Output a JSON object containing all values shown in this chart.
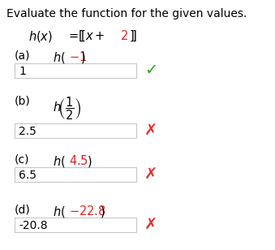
{
  "title": "Evaluate the function for the given values.",
  "bg": "#ffffff",
  "title_fs": 10,
  "func_fs": 10,
  "part_fs": 10,
  "answer_fs": 10,
  "mark_fs": 12,
  "box_color": "#c8c8c8",
  "check_color": "#22aa22",
  "cross_color": "#e03030",
  "text_color": "#000000",
  "red_color": "#dd2222",
  "parts": [
    {
      "letter": "(a)",
      "h_normal": "h(",
      "arg": "-1",
      "arg_red": true,
      "h_close": ")",
      "answer": "1",
      "correct": true,
      "fraction": false
    },
    {
      "letter": "(b)",
      "h_normal": "h",
      "arg": "1/2",
      "arg_red": false,
      "h_close": "",
      "answer": "2.5",
      "correct": false,
      "fraction": true
    },
    {
      "letter": "(c)",
      "h_normal": "h(",
      "arg": "4.5",
      "arg_red": true,
      "h_close": ")",
      "answer": "6.5",
      "correct": false,
      "fraction": false
    },
    {
      "letter": "(d)",
      "h_normal": "h(",
      "arg": "-22.8",
      "arg_red": true,
      "h_close": ")",
      "answer": "-20.8",
      "correct": false,
      "fraction": false
    }
  ]
}
